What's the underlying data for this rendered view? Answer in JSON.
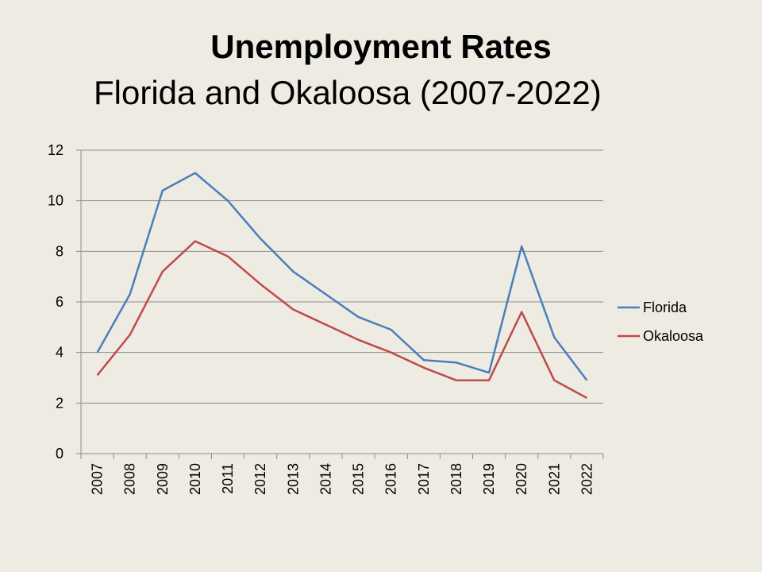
{
  "chart_data": {
    "type": "line",
    "title": "Unemployment Rates",
    "subtitle": "Florida and Okaloosa (2007-2022)",
    "categories": [
      "2007",
      "2008",
      "2009",
      "2010",
      "2011",
      "2012",
      "2013",
      "2014",
      "2015",
      "2016",
      "2017",
      "2018",
      "2019",
      "2020",
      "2021",
      "2022"
    ],
    "series": [
      {
        "name": "Florida",
        "color": "#4a7ebb",
        "values": [
          4.0,
          6.3,
          10.4,
          11.1,
          10.0,
          8.5,
          7.2,
          6.3,
          5.4,
          4.9,
          3.7,
          3.6,
          3.2,
          8.2,
          4.6,
          2.9
        ]
      },
      {
        "name": "Okaloosa",
        "color": "#be4b48",
        "values": [
          3.1,
          4.7,
          7.2,
          8.4,
          7.8,
          6.7,
          5.7,
          5.1,
          4.5,
          4.0,
          3.4,
          2.9,
          2.9,
          5.6,
          2.9,
          2.2
        ]
      }
    ],
    "ylim": [
      0,
      12
    ],
    "yticks": [
      "0",
      "2",
      "4",
      "6",
      "8",
      "10",
      "12"
    ],
    "grid": true,
    "legend_position": "right"
  }
}
